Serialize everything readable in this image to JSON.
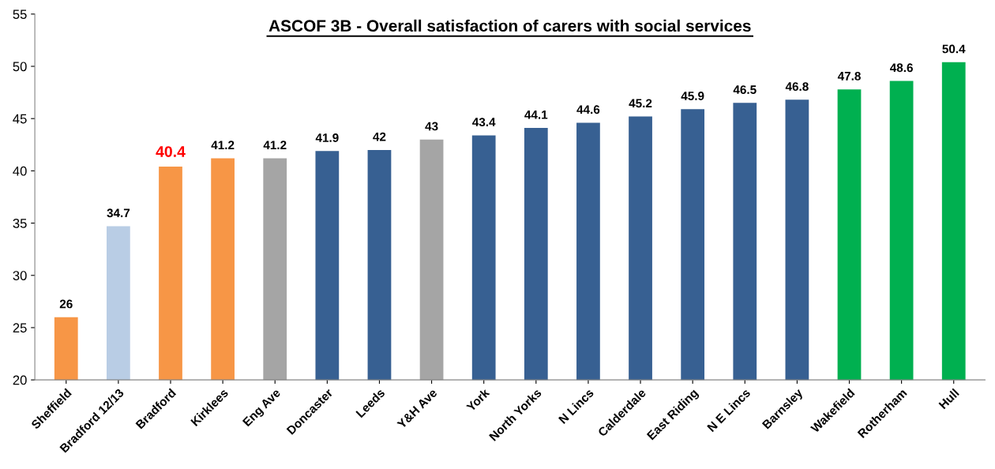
{
  "chart_data": {
    "type": "bar",
    "title": "ASCOF 3B - Overall satisfaction of carers with social services",
    "categories": [
      "Sheffield",
      "Bradford 12/13",
      "Bradford",
      "Kirklees",
      "Eng Ave",
      "Doncaster",
      "Leeds",
      "Y&H Ave",
      "York",
      "North Yorks",
      "N Lincs",
      "Calderdale",
      "East Riding",
      "N E Lincs",
      "Barnsley",
      "Wakefield",
      "Rotherham",
      "Hull"
    ],
    "values": [
      26,
      34.7,
      40.4,
      41.2,
      41.2,
      41.9,
      42,
      43,
      43.4,
      44.1,
      44.6,
      45.2,
      45.9,
      46.5,
      46.8,
      47.8,
      48.6,
      50.4
    ],
    "value_labels": [
      "26",
      "34.7",
      null,
      "41.2",
      "41.2",
      "41.9",
      "42",
      "43",
      "43.4",
      "44.1",
      "44.6",
      "45.2",
      "45.9",
      "46.5",
      "46.8",
      "47.8",
      "48.6",
      "50.4"
    ],
    "colors": [
      "#f79646",
      "#b9cde5",
      "#f79646",
      "#f79646",
      "#a5a5a5",
      "#376092",
      "#376092",
      "#a5a5a5",
      "#376092",
      "#376092",
      "#376092",
      "#376092",
      "#376092",
      "#376092",
      "#376092",
      "#00b050",
      "#00b050",
      "#00b050"
    ],
    "annotations": [
      {
        "text": "40.4",
        "x": "Bradford",
        "y": 40.4
      }
    ],
    "ylim": [
      20,
      55
    ],
    "yticks": [
      20,
      25,
      30,
      35,
      40,
      45,
      50,
      55
    ],
    "grid": false,
    "legend": false
  }
}
